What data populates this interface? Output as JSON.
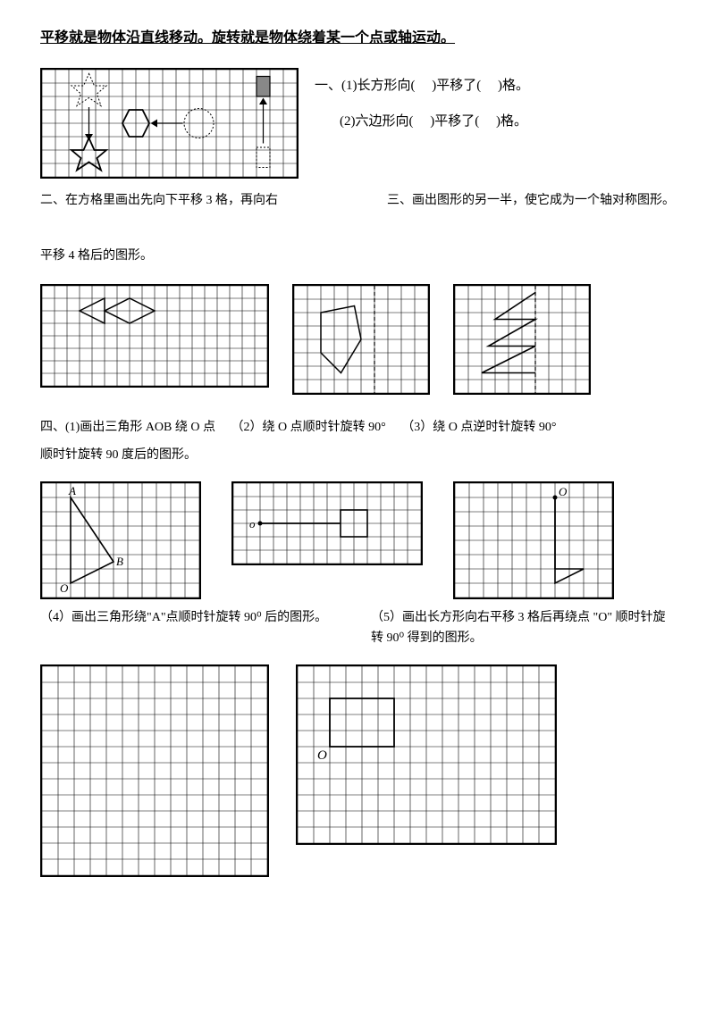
{
  "title": "平移就是物体沿直线移动。旋转就是物体绕着某一个点或轴运动。",
  "q1": {
    "line1_a": "一、(1)长方形向(",
    "line1_b": ")平移了(",
    "line1_c": ")格。",
    "line2_a": "(2)六边形向(",
    "line2_b": ")平移了(",
    "line2_c": ")格。"
  },
  "q2": "二、在方格里画出先向下平移 3 格，再向右",
  "q3": "三、画出图形的另一半，使它成为一个轴对称图形。",
  "q2b": "平移 4 格后的图形。",
  "q4_1": "四、(1)画出三角形 AOB 绕 O 点",
  "q4_2": "（2）绕 O 点顺时针旋转 90°",
  "q4_3": "（3）绕 O 点逆时针旋转 90°",
  "q4_sub": "顺时针旋转 90 度后的图形。",
  "q4_4": "（4）画出三角形绕\"A\"点顺时针旋转 90⁰ 后的图形。",
  "q4_5": "（5）画出长方形向右平移 3 格后再绕点 \"O\" 顺时针旋转 90⁰ 得到的图形。",
  "grid": {
    "cell": 14,
    "stroke": "#000000",
    "strokeWidth": 0.6
  },
  "colors": {
    "black": "#000000",
    "white": "#ffffff",
    "gray": "#888888"
  },
  "figures": {
    "g1": {
      "cols": 19,
      "rows": 8,
      "cell": 15
    },
    "g2": {
      "cols": 18,
      "rows": 8,
      "cell": 14
    },
    "g3a": {
      "cols": 10,
      "rows": 8,
      "cell": 15
    },
    "g3b": {
      "cols": 10,
      "rows": 8,
      "cell": 15
    },
    "g4_1": {
      "cols": 11,
      "rows": 8,
      "cell": 16
    },
    "g4_2": {
      "cols": 14,
      "rows": 6,
      "cell": 15
    },
    "g4_3": {
      "cols": 11,
      "rows": 8,
      "cell": 16
    },
    "g5a": {
      "cols": 14,
      "rows": 13,
      "cell": 18
    },
    "g5b": {
      "cols": 16,
      "rows": 11,
      "cell": 18
    }
  }
}
